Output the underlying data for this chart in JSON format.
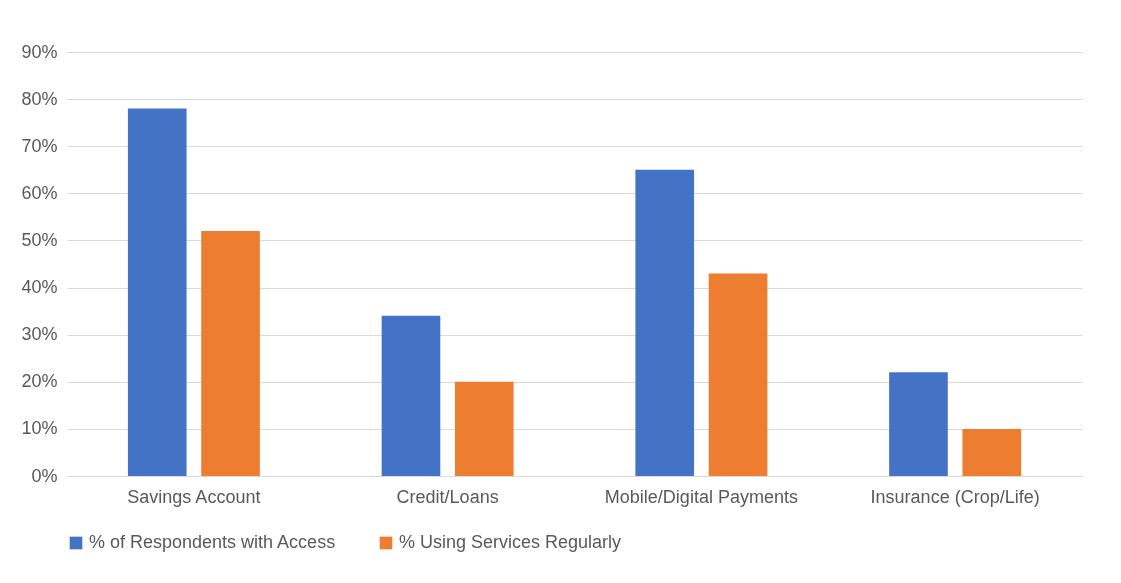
{
  "chart_data": {
    "type": "bar",
    "categories": [
      "Savings Account",
      "Credit/Loans",
      "Mobile/Digital Payments",
      "Insurance (Crop/Life)"
    ],
    "series": [
      {
        "name": "% of Respondents with Access",
        "color": "#4472c4",
        "values": [
          78,
          34,
          65,
          22
        ]
      },
      {
        "name": "% Using Services Regularly",
        "color": "#ed7d31",
        "values": [
          52,
          20,
          43,
          10
        ]
      }
    ],
    "ylim": [
      0,
      90
    ],
    "yticks": [
      {
        "value": 0,
        "label": "0%"
      },
      {
        "value": 10,
        "label": "10%"
      },
      {
        "value": 20,
        "label": "20%"
      },
      {
        "value": 30,
        "label": "30%"
      },
      {
        "value": 40,
        "label": "40%"
      },
      {
        "value": 50,
        "label": "50%"
      },
      {
        "value": 60,
        "label": "60%"
      },
      {
        "value": 70,
        "label": "70%"
      },
      {
        "value": 80,
        "label": "80%"
      },
      {
        "value": 90,
        "label": "90%"
      }
    ],
    "grid": "y",
    "legend": "bottom"
  }
}
